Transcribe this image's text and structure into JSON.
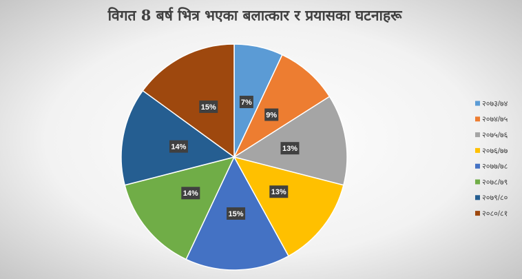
{
  "chart_data": {
    "type": "pie",
    "title": "विगत 8 बर्ष भित्र भएका बलात्कार र प्रयासका घटनाहरू",
    "categories": [
      "२०७३/७४",
      "२०७४/७५",
      "२०७५/७६",
      "२०७६/७७",
      "२०७७/७८",
      "२०७८/७९",
      "२०७९/८०",
      "२०८०/८१"
    ],
    "values": [
      7,
      9,
      13,
      13,
      15,
      14,
      14,
      15
    ],
    "value_labels": [
      "7%",
      "9%",
      "13%",
      "13%",
      "15%",
      "14%",
      "14%",
      "15%"
    ],
    "colors": [
      "#5b9bd5",
      "#ed7d31",
      "#a5a5a5",
      "#ffc000",
      "#4472c4",
      "#70ad47",
      "#255e91",
      "#9e480e"
    ],
    "legend": "right"
  }
}
